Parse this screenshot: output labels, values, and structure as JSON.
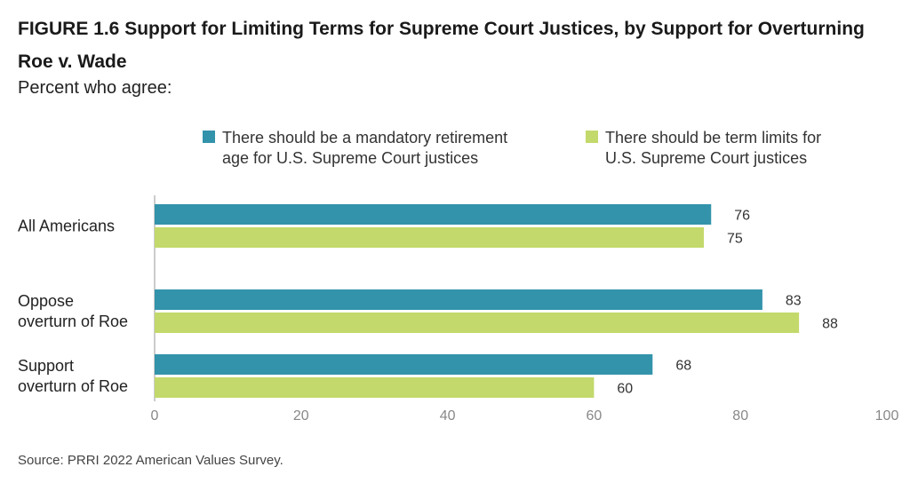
{
  "header": {
    "title": "FIGURE 1.6  Support for Limiting Terms for Supreme Court Justices, by Support for Overturning Roe v. Wade",
    "subtitle": "Percent who agree:"
  },
  "footer": {
    "source": "Source: PRRI 2022 American Values Survey."
  },
  "chart_data": {
    "type": "bar",
    "orientation": "horizontal",
    "categories": [
      [
        "All Americans"
      ],
      [
        "Oppose",
        "overturn of Roe"
      ],
      [
        "Support",
        "overturn of Roe"
      ]
    ],
    "series": [
      {
        "name_lines": [
          "There should be a mandatory retirement",
          "age for U.S. Supreme Court justices"
        ],
        "color": "#3393ab",
        "values": [
          76,
          83,
          68
        ]
      },
      {
        "name_lines": [
          "There should be term limits for",
          "U.S. Supreme Court justices"
        ],
        "color": "#c3d96b",
        "values": [
          75,
          88,
          60
        ]
      }
    ],
    "xlim": [
      0,
      100
    ],
    "xticks": [
      0,
      20,
      40,
      60,
      80,
      100
    ],
    "grid": false,
    "legend_position": "top"
  }
}
